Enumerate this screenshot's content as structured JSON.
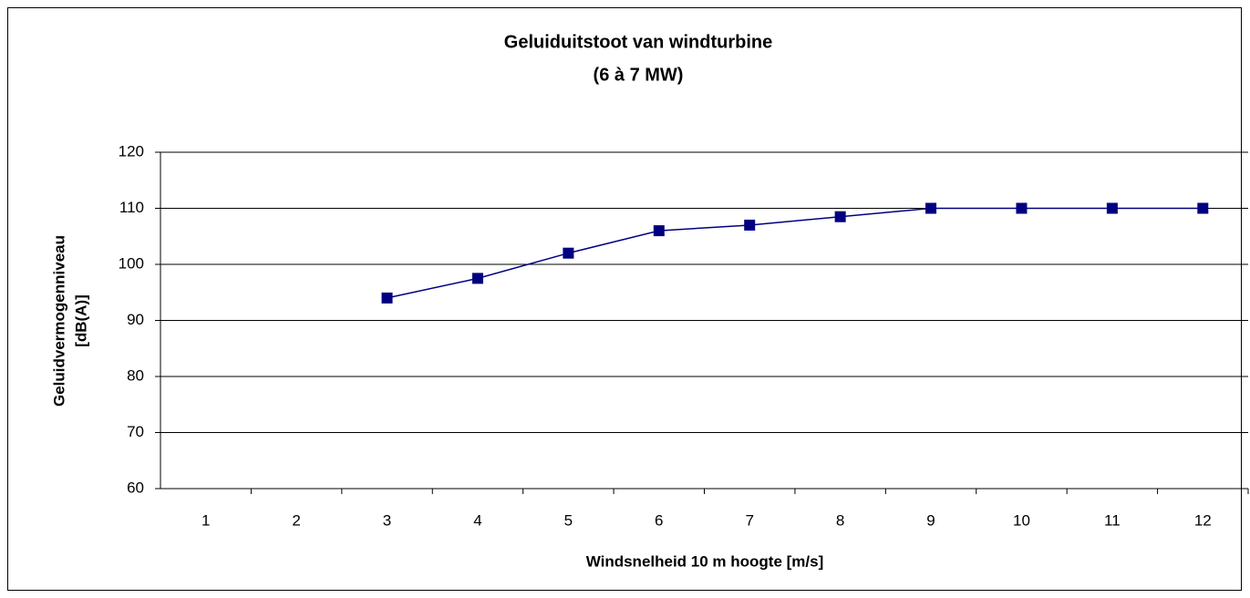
{
  "chart_data": {
    "type": "line",
    "title": "Geluiduitstoot van windturbine",
    "subtitle": "(6 à 7 MW)",
    "xlabel": "Windsnelheid 10 m hoogte [m/s]",
    "ylabel": [
      "Geluidvermogenniveau",
      "[dB(A)]"
    ],
    "categories": [
      1,
      2,
      3,
      4,
      5,
      6,
      7,
      8,
      9,
      10,
      11,
      12
    ],
    "series": [
      {
        "name": "Geluidvermogenniveau",
        "color": "#000080",
        "values": [
          null,
          null,
          94,
          97.5,
          102,
          106,
          107,
          108.5,
          110,
          110,
          110,
          110
        ]
      }
    ],
    "ylim": [
      60,
      120
    ],
    "yticks": [
      60,
      70,
      80,
      90,
      100,
      110,
      120
    ],
    "grid": true
  }
}
